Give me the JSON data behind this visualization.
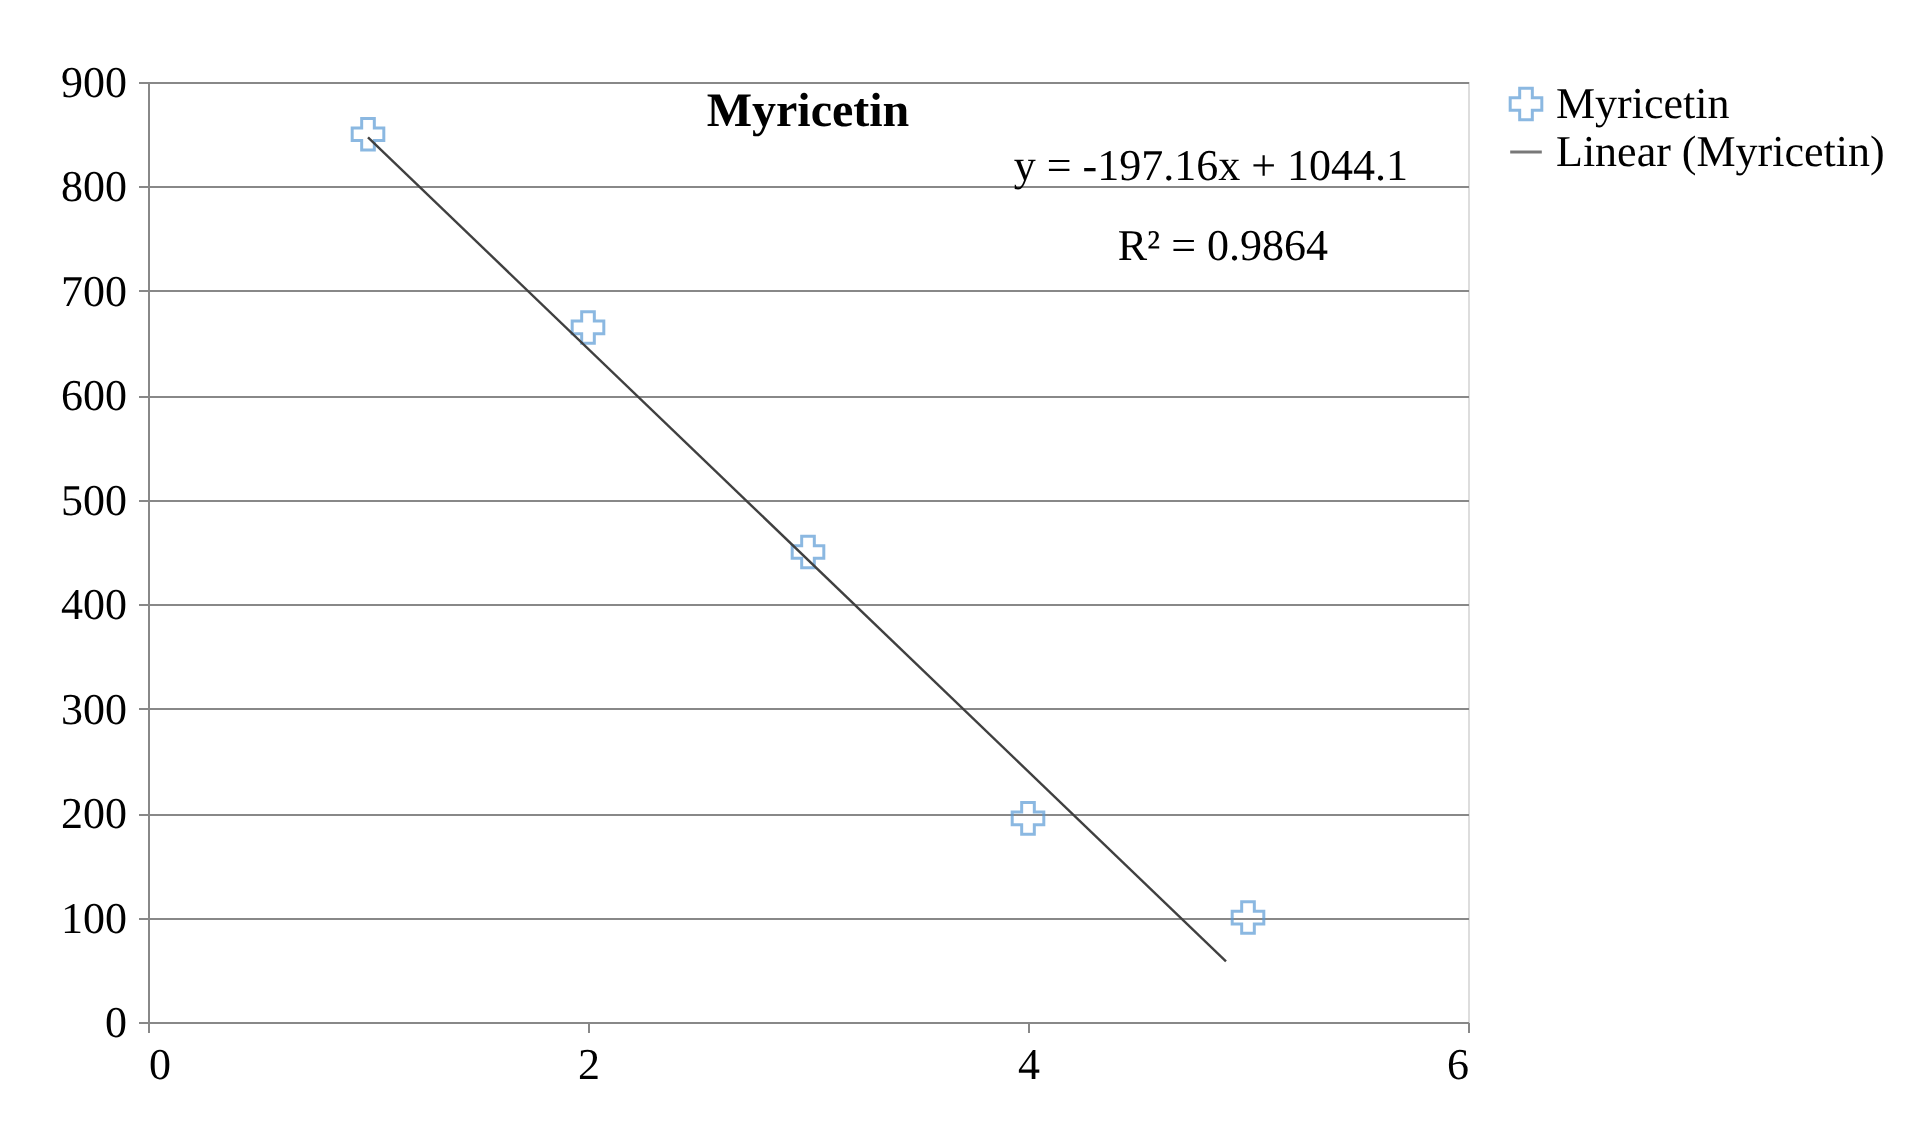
{
  "chart_data": {
    "type": "scatter",
    "title": "Myricetin",
    "annotations": [
      "y = -197.16x + 1044.1",
      "R² = 0.9864"
    ],
    "x": [
      1,
      2,
      3,
      4,
      5
    ],
    "series": [
      {
        "name": "Myricetin",
        "color": "#5b9bd5",
        "values": [
          850,
          665,
          450,
          195,
          100
        ],
        "marker": "cross"
      },
      {
        "name": "Linear (Myricetin)",
        "type": "line",
        "color": "#404040",
        "x": [
          1,
          4.9
        ],
        "values": [
          847,
          58
        ],
        "line_style": "solid"
      }
    ],
    "xlim": [
      0,
      6
    ],
    "xticks": [
      0,
      2,
      4,
      6
    ],
    "ylim": [
      0,
      900
    ],
    "yticks": [
      0,
      100,
      200,
      300,
      400,
      500,
      600,
      700,
      800,
      900
    ],
    "grid": "y",
    "legend": "right"
  }
}
